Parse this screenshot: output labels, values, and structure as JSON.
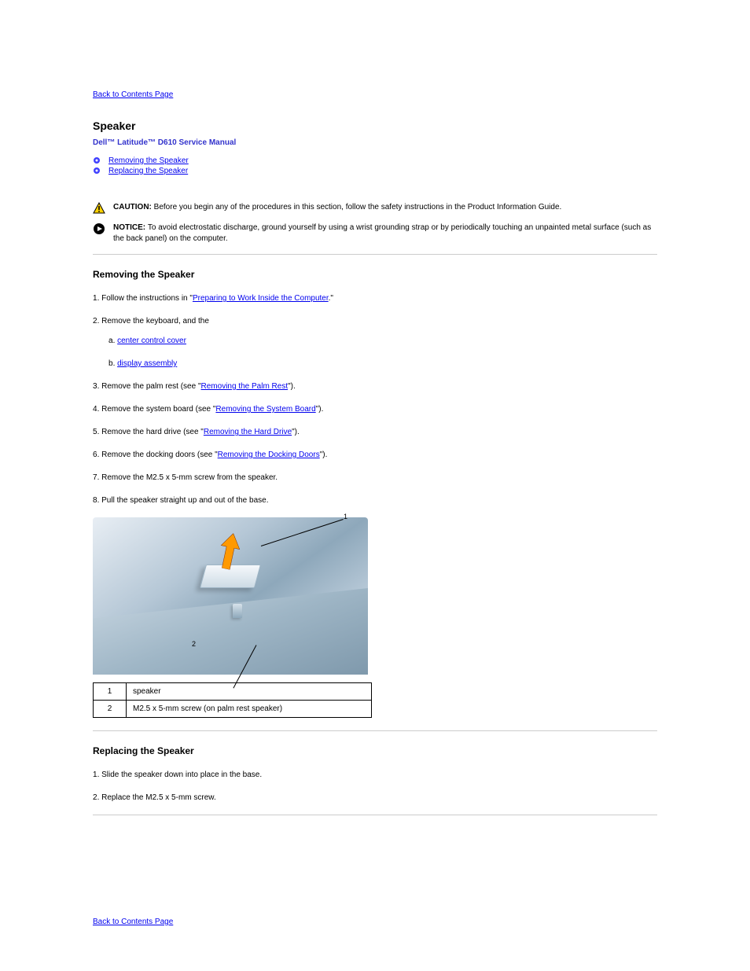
{
  "links": {
    "back": "Back to Contents Page"
  },
  "header": {
    "title": "Speaker",
    "subtitle": "Dell™ Latitude™ D610 Service Manual"
  },
  "nav": {
    "remove": "Removing the Speaker",
    "replace": "Replacing the Speaker"
  },
  "caution": {
    "label": "CAUTION: ",
    "text": "Before you begin any of the procedures in this section, follow the safety instructions in the Product Information Guide.",
    "icon_bg": "#ffd200",
    "icon_stroke": "#000000"
  },
  "notice": {
    "label": "NOTICE: ",
    "text": "To avoid electrostatic discharge, ground yourself by using a wrist grounding strap or by periodically touching an unpainted metal surface (such as the back panel) on the computer.",
    "icon_bg": "#000000",
    "icon_fg": "#ffffff"
  },
  "remove": {
    "heading": "Removing the Speaker",
    "steps": [
      {
        "pre": "Follow the instructions in \"",
        "link": "Preparing to Work Inside the Computer",
        "post": ".\""
      },
      {
        "pre": "Remove the ",
        "pre2": "keyboard, and the ",
        "items": [
          {
            "link": "center control cover"
          },
          {
            "link": "display assembly"
          }
        ]
      },
      {
        "pre": "Remove the palm rest (see \"",
        "link": "Removing the Palm Rest",
        "post": "\")."
      },
      {
        "pre": "Remove the system board (see \"",
        "link": "Removing the System Board",
        "post": "\")."
      },
      {
        "pre": "Remove the hard drive (see \"",
        "link": "Removing the Hard Drive",
        "post": "\")."
      },
      {
        "pre": "Remove the docking doors (see \"",
        "link": "Removing the Docking Doors",
        "post": "\")."
      },
      {
        "text": "Remove the M2.5 x 5-mm screw from the speaker."
      },
      {
        "text": "Pull the speaker straight up and out of the base."
      }
    ]
  },
  "diagram": {
    "arrow_color": "#ff9900"
  },
  "parts": [
    {
      "n": "1",
      "name": "speaker"
    },
    {
      "n": "2",
      "name": "M2.5 x 5-mm screw (on palm rest speaker)"
    }
  ],
  "replace": {
    "heading": "Replacing the Speaker",
    "steps": [
      {
        "text": "Slide the speaker down into place in the base."
      },
      {
        "text": "Replace the M2.5 x 5-mm screw."
      }
    ]
  }
}
